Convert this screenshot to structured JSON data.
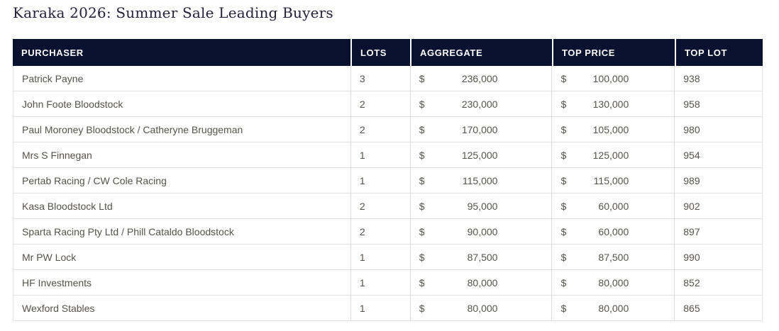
{
  "page": {
    "title": "Karaka 2026: Summer Sale Leading Buyers"
  },
  "table": {
    "currency_symbol": "$",
    "columns": [
      {
        "key": "purchaser",
        "label": "PURCHASER"
      },
      {
        "key": "lots",
        "label": "LOTS"
      },
      {
        "key": "aggregate",
        "label": "AGGREGATE"
      },
      {
        "key": "top_price",
        "label": "TOP PRICE"
      },
      {
        "key": "top_lot",
        "label": "TOP LOT"
      }
    ],
    "rows": [
      {
        "purchaser": "Patrick Payne",
        "lots": "3",
        "aggregate": "236,000",
        "top_price": "100,000",
        "top_lot": "938"
      },
      {
        "purchaser": "John Foote Bloodstock",
        "lots": "2",
        "aggregate": "230,000",
        "top_price": "130,000",
        "top_lot": "958"
      },
      {
        "purchaser": "Paul Moroney Bloodstock / Catheryne Bruggeman",
        "lots": "2",
        "aggregate": "170,000",
        "top_price": "105,000",
        "top_lot": "980"
      },
      {
        "purchaser": "Mrs S Finnegan",
        "lots": "1",
        "aggregate": "125,000",
        "top_price": "125,000",
        "top_lot": "954"
      },
      {
        "purchaser": "Pertab Racing / CW Cole Racing",
        "lots": "1",
        "aggregate": "115,000",
        "top_price": "115,000",
        "top_lot": "989"
      },
      {
        "purchaser": "Kasa Bloodstock Ltd",
        "lots": "2",
        "aggregate": "95,000",
        "top_price": "60,000",
        "top_lot": "902"
      },
      {
        "purchaser": "Sparta Racing Pty Ltd / Phill Cataldo Bloodstock",
        "lots": "2",
        "aggregate": "90,000",
        "top_price": "60,000",
        "top_lot": "897"
      },
      {
        "purchaser": "Mr PW Lock",
        "lots": "1",
        "aggregate": "87,500",
        "top_price": "87,500",
        "top_lot": "990"
      },
      {
        "purchaser": "HF Investments",
        "lots": "1",
        "aggregate": "80,000",
        "top_price": "80,000",
        "top_lot": "852"
      },
      {
        "purchaser": "Wexford Stables",
        "lots": "1",
        "aggregate": "80,000",
        "top_price": "80,000",
        "top_lot": "865"
      }
    ]
  },
  "colors": {
    "header_background": "#081230",
    "header_text": "#ffffff",
    "body_text": "#56524c",
    "row_border": "#e3e1de",
    "column_border": "#dedcd9",
    "title_text": "#23223a"
  }
}
